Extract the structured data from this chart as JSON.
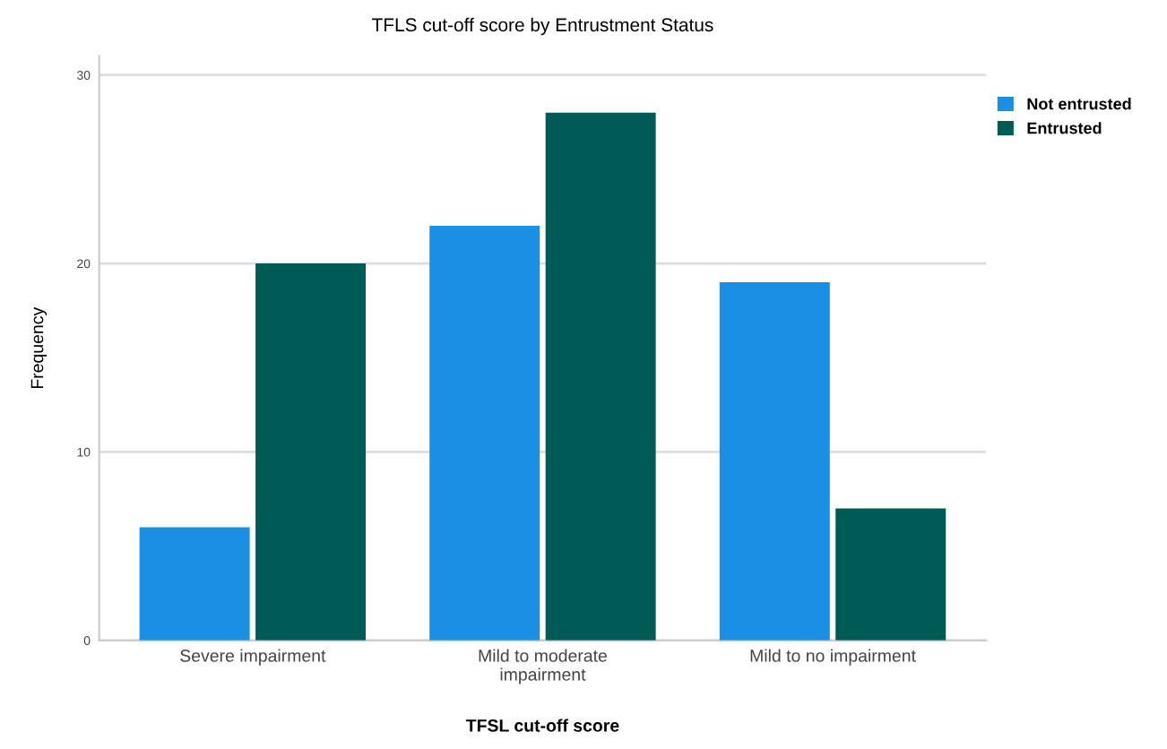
{
  "chart_data": {
    "type": "bar",
    "title": "TFLS cut-off score by Entrustment Status",
    "xlabel": "TFSL cut-off score",
    "ylabel": "Frequency",
    "categories": [
      "Severe impairment",
      "Mild to moderate\nimpairment",
      "Mild to no impairment"
    ],
    "series": [
      {
        "name": "Not entrusted",
        "color": "#1a8fe3",
        "values": [
          6,
          22,
          19
        ]
      },
      {
        "name": "Entrusted",
        "color": "#005a55",
        "values": [
          20,
          28,
          7
        ]
      }
    ],
    "ylim": [
      0,
      31
    ],
    "yticks": [
      0,
      10,
      20,
      30
    ],
    "grid": "y",
    "legend": "top right"
  }
}
